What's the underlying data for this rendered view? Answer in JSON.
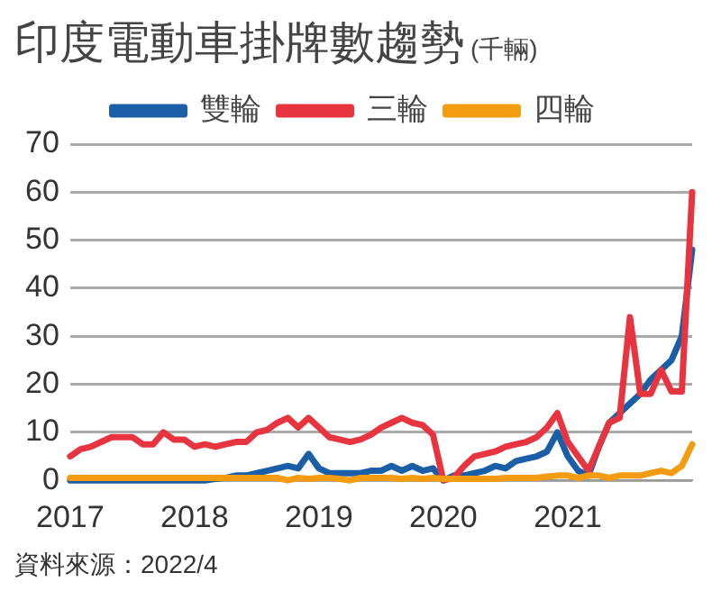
{
  "chart_data": {
    "type": "line",
    "title": "印度電動車掛牌數趨勢",
    "subtitle": "(千輛)",
    "categories": [
      "2017",
      null,
      null,
      null,
      null,
      null,
      null,
      null,
      null,
      null,
      null,
      null,
      "2018",
      null,
      null,
      null,
      null,
      null,
      null,
      null,
      null,
      null,
      null,
      null,
      "2019",
      null,
      null,
      null,
      null,
      null,
      null,
      null,
      null,
      null,
      null,
      null,
      "2020",
      null,
      null,
      null,
      null,
      null,
      null,
      null,
      null,
      null,
      null,
      null,
      "2021",
      null,
      null,
      null,
      null,
      null,
      null,
      null,
      null,
      null,
      null,
      null,
      null
    ],
    "series": [
      {
        "name": "雙輪",
        "color": "#1a5ea8",
        "values": [
          0,
          0,
          0,
          0,
          0,
          0,
          0,
          0,
          0,
          0,
          0,
          0,
          0,
          0,
          0.3,
          0.5,
          1,
          1,
          1.5,
          2,
          2.5,
          3,
          2.5,
          5.5,
          2.5,
          1.5,
          1.5,
          1.5,
          1.5,
          2,
          2,
          3,
          2,
          3,
          2,
          2.5,
          0,
          1,
          1,
          1.5,
          2,
          3,
          2.5,
          4,
          4.5,
          5,
          6,
          10,
          5,
          2,
          1,
          7,
          12,
          14,
          16,
          18,
          21,
          23,
          25,
          30,
          48
        ]
      },
      {
        "name": "三輪",
        "color": "#e8343f",
        "values": [
          5,
          6.5,
          7,
          8,
          9,
          9,
          9,
          7.5,
          7.5,
          10,
          8.5,
          8.5,
          7,
          7.5,
          7,
          7.5,
          8,
          8,
          10,
          10.5,
          12,
          13,
          11,
          13,
          11,
          9,
          8.5,
          8,
          8.5,
          9.5,
          11,
          12,
          13,
          12,
          11.5,
          9.5,
          0,
          0.5,
          3,
          5,
          5.5,
          6,
          7,
          7.5,
          8,
          9,
          11,
          14,
          8,
          5,
          2,
          7,
          12,
          13,
          34,
          18,
          18,
          23,
          18.5,
          18.5,
          60
        ]
      },
      {
        "name": "四輪",
        "color": "#f39c12",
        "values": [
          0.5,
          0.5,
          0.5,
          0.5,
          0.5,
          0.5,
          0.5,
          0.5,
          0.5,
          0.5,
          0.5,
          0.5,
          0.5,
          0.5,
          0.5,
          0.5,
          0.5,
          0.5,
          0.5,
          0.5,
          0.5,
          0,
          0.5,
          0.3,
          0.5,
          0.5,
          0.3,
          0,
          0.5,
          0.5,
          0.5,
          0.5,
          0.3,
          0.5,
          0.3,
          0.5,
          0.3,
          0.3,
          0.3,
          0.3,
          0.3,
          0.3,
          0.5,
          0.5,
          0.5,
          0.5,
          0.8,
          1,
          1,
          0.5,
          1,
          1,
          0.5,
          1,
          1,
          1,
          1.5,
          2,
          1.5,
          3,
          7.5
        ]
      }
    ],
    "ylim": [
      0,
      70
    ],
    "yticks": [
      0,
      10,
      20,
      30,
      40,
      50,
      60,
      70
    ],
    "grid": "y",
    "legend": "top",
    "marker": "none",
    "line_style": "solid",
    "annotations": [
      "資料來源：2022/4"
    ]
  }
}
